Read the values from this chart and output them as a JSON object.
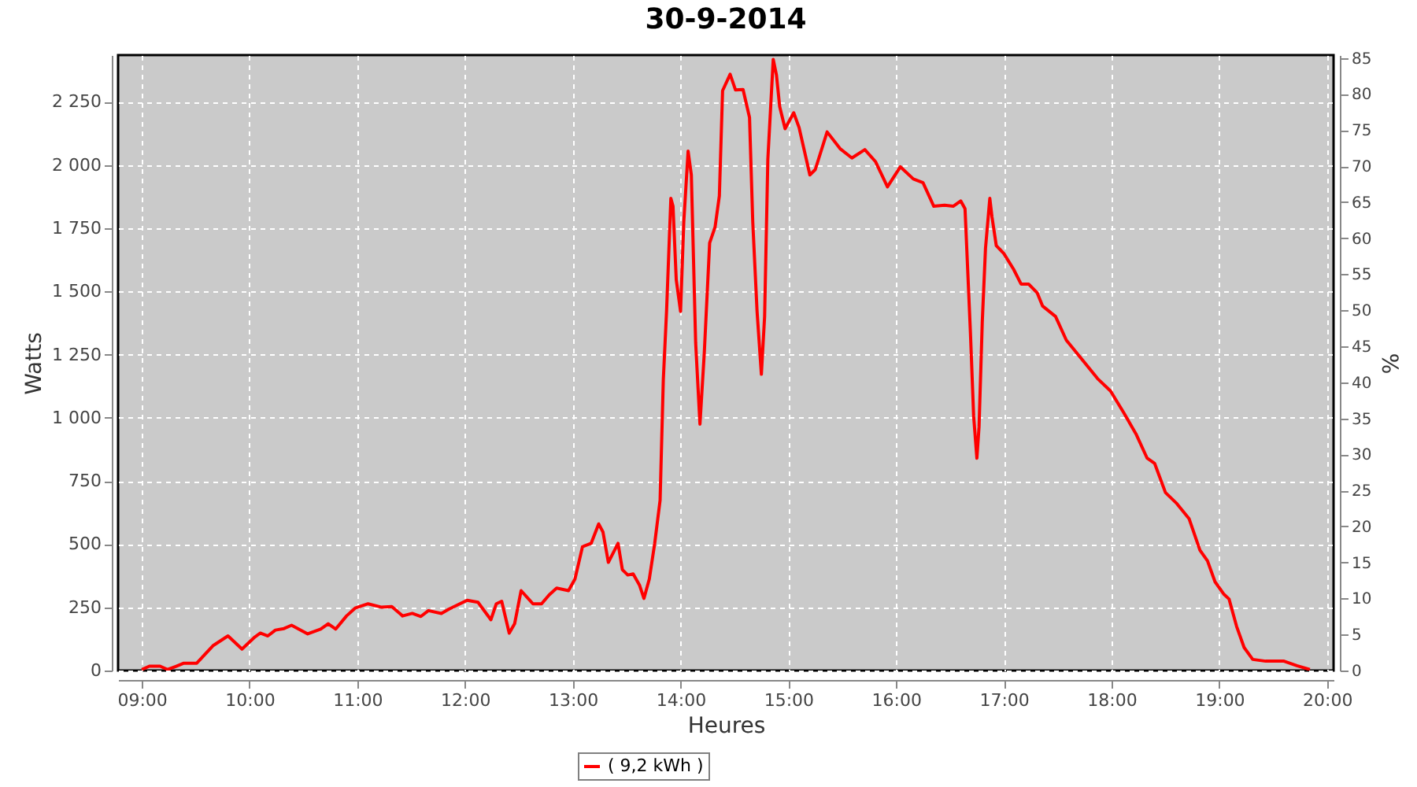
{
  "chart_data": {
    "type": "line",
    "title": "30-9-2014",
    "xlabel": "Heures",
    "ylabel": "Watts",
    "y2label": "%",
    "xlim": [
      8.78,
      20.06
    ],
    "ylim": [
      0,
      2435
    ],
    "y2lim": [
      0,
      85.4
    ],
    "xticks": [
      {
        "value": 9,
        "label": "09:00"
      },
      {
        "value": 10,
        "label": "10:00"
      },
      {
        "value": 11,
        "label": "11:00"
      },
      {
        "value": 12,
        "label": "12:00"
      },
      {
        "value": 13,
        "label": "13:00"
      },
      {
        "value": 14,
        "label": "14:00"
      },
      {
        "value": 15,
        "label": "15:00"
      },
      {
        "value": 16,
        "label": "16:00"
      },
      {
        "value": 17,
        "label": "17:00"
      },
      {
        "value": 18,
        "label": "18:00"
      },
      {
        "value": 19,
        "label": "19:00"
      },
      {
        "value": 20,
        "label": "20:00"
      }
    ],
    "yticks": [
      0,
      250,
      500,
      750,
      {
        "value": 1000,
        "label": "1 000"
      },
      {
        "value": 1250,
        "label": "1 250"
      },
      {
        "value": 1500,
        "label": "1 500"
      },
      {
        "value": 1750,
        "label": "1 750"
      },
      {
        "value": 2000,
        "label": "2 000"
      },
      {
        "value": 2250,
        "label": "2 250"
      }
    ],
    "y2ticks": [
      0,
      5,
      10,
      15,
      20,
      25,
      30,
      35,
      40,
      45,
      50,
      55,
      60,
      65,
      70,
      75,
      80,
      85
    ],
    "grid": true,
    "legend": "bottom",
    "series": [
      {
        "name": "( 9,2 kWh )",
        "color": "#ff0000",
        "x": [
          9.0,
          9.07,
          9.17,
          9.24,
          9.32,
          9.39,
          9.51,
          9.66,
          9.8,
          9.93,
          10.05,
          10.1,
          10.17,
          10.24,
          10.32,
          10.39,
          10.54,
          10.66,
          10.73,
          10.8,
          10.9,
          10.98,
          11.1,
          11.22,
          11.32,
          11.42,
          11.51,
          11.59,
          11.66,
          11.78,
          11.85,
          12.02,
          12.12,
          12.24,
          12.29,
          12.34,
          12.41,
          12.46,
          12.52,
          12.63,
          12.71,
          12.78,
          12.85,
          12.96,
          13.02,
          13.09,
          13.17,
          13.24,
          13.28,
          13.33,
          13.42,
          13.46,
          13.51,
          13.56,
          13.62,
          13.66,
          13.71,
          13.76,
          13.81,
          13.84,
          13.87,
          13.91,
          13.93,
          13.96,
          14.0,
          14.03,
          14.07,
          14.1,
          14.14,
          14.18,
          14.22,
          14.27,
          14.32,
          14.36,
          14.39,
          14.46,
          14.51,
          14.58,
          14.64,
          14.67,
          14.71,
          14.75,
          14.78,
          14.81,
          14.86,
          14.89,
          14.92,
          14.97,
          15.05,
          15.1,
          15.2,
          15.25,
          15.36,
          15.48,
          15.59,
          15.71,
          15.81,
          15.92,
          16.04,
          16.16,
          16.25,
          16.35,
          16.45,
          16.53,
          16.6,
          16.64,
          16.69,
          16.72,
          16.75,
          16.77,
          16.8,
          16.83,
          16.87,
          16.89,
          16.93,
          17.0,
          17.09,
          17.16,
          17.23,
          17.31,
          17.36,
          17.48,
          17.58,
          17.72,
          17.87,
          17.99,
          18.11,
          18.23,
          18.33,
          18.4,
          18.5,
          18.6,
          18.72,
          18.82,
          18.89,
          18.96,
          19.04,
          19.09,
          19.16,
          19.23,
          19.31,
          19.43,
          19.6,
          19.72,
          19.84
        ],
        "values": [
          4,
          17,
          17,
          4,
          17,
          29,
          29,
          98,
          137,
          85,
          133,
          148,
          137,
          160,
          166,
          179,
          145,
          164,
          185,
          164,
          216,
          247,
          264,
          251,
          253,
          216,
          226,
          214,
          237,
          226,
          243,
          278,
          270,
          201,
          264,
          274,
          148,
          185,
          316,
          264,
          264,
          299,
          326,
          316,
          362,
          490,
          503,
          580,
          548,
          428,
          503,
          399,
          378,
          382,
          337,
          285,
          362,
          503,
          673,
          1151,
          1421,
          1868,
          1837,
          1546,
          1421,
          1775,
          2055,
          1961,
          1297,
          975,
          1255,
          1692,
          1754,
          1878,
          2294,
          2359,
          2297,
          2299,
          2188,
          1775,
          1421,
          1172,
          1401,
          2023,
          2418,
          2356,
          2231,
          2144,
          2207,
          2148,
          1961,
          1982,
          2131,
          2065,
          2028,
          2061,
          2013,
          1914,
          1993,
          1945,
          1930,
          1837,
          1841,
          1837,
          1858,
          1827,
          1338,
          1006,
          840,
          964,
          1380,
          1671,
          1868,
          1795,
          1681,
          1650,
          1588,
          1529,
          1529,
          1494,
          1442,
          1401,
          1307,
          1234,
          1155,
          1106,
          1022,
          933,
          840,
          819,
          704,
          663,
          600,
          476,
          434,
          351,
          303,
          283,
          175,
          91,
          44,
          37,
          37,
          19,
          4
        ]
      }
    ]
  }
}
